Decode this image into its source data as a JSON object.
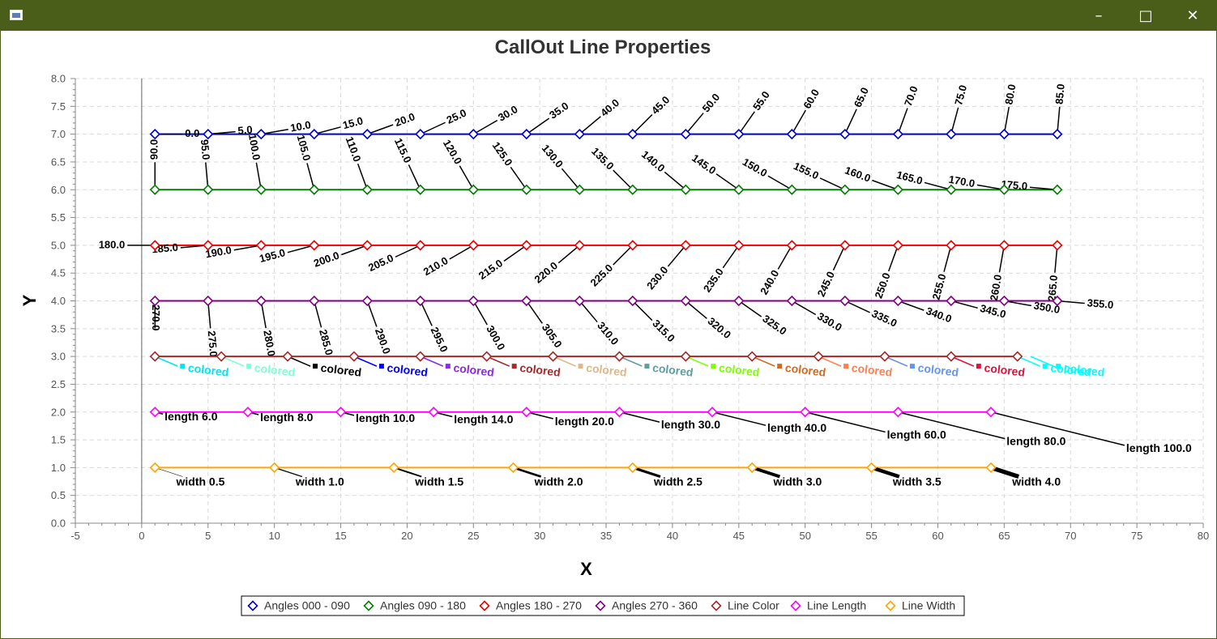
{
  "window": {
    "title": "",
    "icon": "window-app-icon",
    "controls": {
      "minimize": "minimize-icon",
      "maximize": "maximize-icon",
      "close": "close-icon"
    }
  },
  "chart_data": {
    "type": "line",
    "title": "CallOut Line Properties",
    "xlabel": "X",
    "ylabel": "Y",
    "xlim": [
      -5,
      80
    ],
    "ylim": [
      0,
      8
    ],
    "xticks": [
      -5,
      0,
      5,
      10,
      15,
      20,
      25,
      30,
      35,
      40,
      45,
      50,
      55,
      60,
      65,
      70,
      75,
      80
    ],
    "yticks": [
      "0.0",
      "0.5",
      "1.0",
      "1.5",
      "2.0",
      "2.5",
      "3.0",
      "3.5",
      "4.0",
      "4.5",
      "5.0",
      "5.5",
      "6.0",
      "6.5",
      "7.0",
      "7.5",
      "8.0"
    ],
    "grid": true,
    "legend_position": "bottom",
    "series": [
      {
        "name": "Angles 000 - 090",
        "color": "#0000cc",
        "callout": "angle",
        "x": [
          1,
          5,
          9,
          13,
          17,
          21,
          25,
          29,
          33,
          37,
          41,
          45,
          49,
          53,
          57,
          61,
          65,
          69
        ],
        "y": [
          7,
          7,
          7,
          7,
          7,
          7,
          7,
          7,
          7,
          7,
          7,
          7,
          7,
          7,
          7,
          7,
          7,
          7
        ],
        "labels": [
          "0.0",
          "5.0",
          "10.0",
          "15.0",
          "20.0",
          "25.0",
          "30.0",
          "35.0",
          "40.0",
          "45.0",
          "50.0",
          "55.0",
          "60.0",
          "65.0",
          "70.0",
          "75.0",
          "80.0",
          "85.0"
        ]
      },
      {
        "name": "Angles 090 - 180",
        "color": "#008000",
        "callout": "angle",
        "x": [
          1,
          5,
          9,
          13,
          17,
          21,
          25,
          29,
          33,
          37,
          41,
          45,
          49,
          53,
          57,
          61,
          65,
          69
        ],
        "y": [
          6,
          6,
          6,
          6,
          6,
          6,
          6,
          6,
          6,
          6,
          6,
          6,
          6,
          6,
          6,
          6,
          6,
          6
        ],
        "labels": [
          "90.0",
          "95.0",
          "100.0",
          "105.0",
          "110.0",
          "115.0",
          "120.0",
          "125.0",
          "130.0",
          "135.0",
          "140.0",
          "145.0",
          "150.0",
          "155.0",
          "160.0",
          "165.0",
          "170.0",
          "175.0"
        ]
      },
      {
        "name": "Angles 180 - 270",
        "color": "#ee0000",
        "callout": "angle",
        "x": [
          1,
          5,
          9,
          13,
          17,
          21,
          25,
          29,
          33,
          37,
          41,
          45,
          49,
          53,
          57,
          61,
          65,
          69
        ],
        "y": [
          5,
          5,
          5,
          5,
          5,
          5,
          5,
          5,
          5,
          5,
          5,
          5,
          5,
          5,
          5,
          5,
          5,
          5
        ],
        "labels": [
          "180.0",
          "185.0",
          "190.0",
          "195.0",
          "200.0",
          "205.0",
          "210.0",
          "215.0",
          "220.0",
          "225.0",
          "230.0",
          "235.0",
          "240.0",
          "245.0",
          "250.0",
          "255.0",
          "260.0",
          "265.0"
        ]
      },
      {
        "name": "Angles 270 - 360",
        "color": "#800080",
        "callout": "angle",
        "x": [
          1,
          5,
          9,
          13,
          17,
          21,
          25,
          29,
          33,
          37,
          41,
          45,
          49,
          53,
          57,
          61,
          65,
          69
        ],
        "y": [
          4,
          4,
          4,
          4,
          4,
          4,
          4,
          4,
          4,
          4,
          4,
          4,
          4,
          4,
          4,
          4,
          4,
          4
        ],
        "labels": [
          "270.0",
          "275.0",
          "280.0",
          "285.0",
          "290.0",
          "295.0",
          "300.0",
          "305.0",
          "310.0",
          "315.0",
          "320.0",
          "325.0",
          "330.0",
          "335.0",
          "340.0",
          "345.0",
          "350.0",
          "355.0"
        ]
      },
      {
        "name": "Line Color",
        "color": "#a52a2a",
        "callout": "color",
        "x": [
          1,
          6,
          11,
          16,
          21,
          26,
          31,
          36,
          41,
          46,
          51,
          56,
          61,
          66
        ],
        "y": [
          3,
          3,
          3,
          3,
          3,
          3,
          3,
          3,
          3,
          3,
          3,
          3,
          3,
          3
        ],
        "labels": [
          "colored",
          "colored",
          "colored",
          "colored",
          "colored",
          "colored",
          "colored",
          "colored",
          "colored",
          "colored",
          "colored",
          "colored",
          "colored",
          "colored",
          "colored"
        ],
        "label_colors": [
          "#00e5ee",
          "#7fffd4",
          "#000000",
          "#0000ff",
          "#8a2be2",
          "#a52a2a",
          "#deb887",
          "#5f9ea0",
          "#7fff00",
          "#d2691e",
          "#ff7f50",
          "#6495ed",
          "#dc143c",
          "#00ffff"
        ],
        "last_label_x": 67,
        "last_label_y": 3
      },
      {
        "name": "Line Length",
        "color": "#ff00ff",
        "callout": "length",
        "x": [
          1,
          8,
          15,
          22,
          29,
          36,
          43,
          50,
          57,
          64
        ],
        "y": [
          2,
          2,
          2,
          2,
          2,
          2,
          2,
          2,
          2,
          2
        ],
        "labels": [
          "length 6.0",
          "length 8.0",
          "length 10.0",
          "length 14.0",
          "length 20.0",
          "length 30.0",
          "length 40.0",
          "length 60.0",
          "length 80.0",
          "length 100.0"
        ],
        "lengths": [
          6,
          8,
          10,
          14,
          20,
          30,
          40,
          60,
          80,
          100
        ]
      },
      {
        "name": "Line Width",
        "color": "#ffa500",
        "callout": "width",
        "x": [
          1,
          10,
          19,
          28,
          37,
          46,
          55,
          64
        ],
        "y": [
          1,
          1,
          1,
          1,
          1,
          1,
          1,
          1
        ],
        "labels": [
          "width 0.5",
          "width 1.0",
          "width 1.5",
          "width 2.0",
          "width 2.5",
          "width 3.0",
          "width 3.5",
          "width 4.0"
        ],
        "widths": [
          0.5,
          1.0,
          1.5,
          2.0,
          2.5,
          3.0,
          3.5,
          4.0
        ]
      }
    ]
  }
}
